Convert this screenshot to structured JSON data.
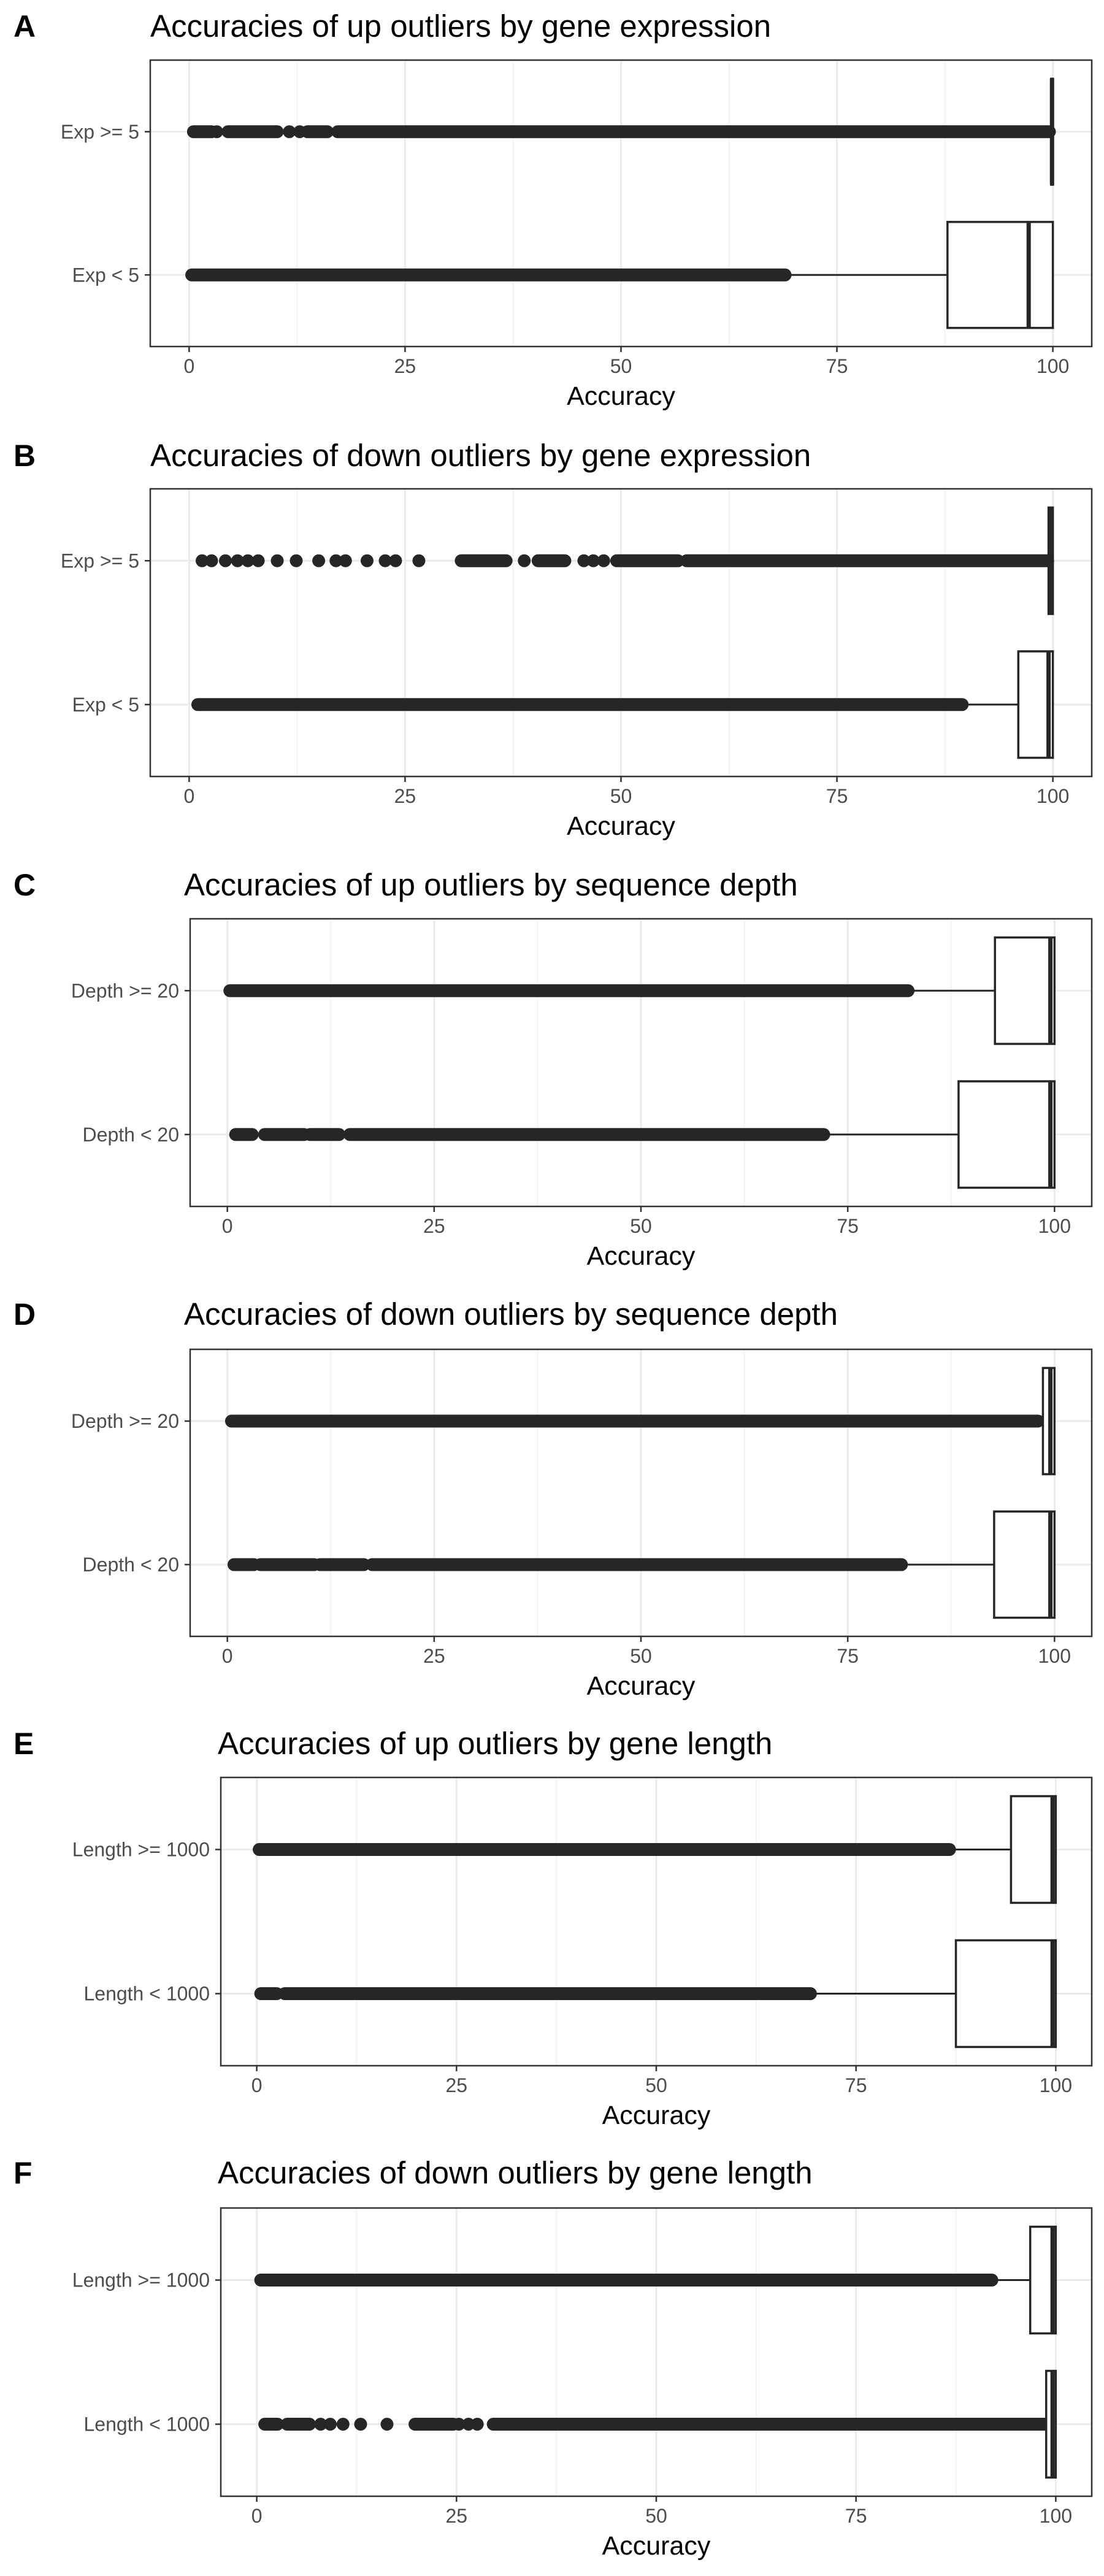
{
  "colors": {
    "ink": "#262626",
    "grid_major": "#ebebeb",
    "grid_minor": "#f2f2f2",
    "frame": "#333333",
    "tick_text": "#4d4d4d"
  },
  "chart_data": [
    {
      "type": "boxplot",
      "panel": "A",
      "title": "Accuracies of up outliers by gene expression",
      "xlabel": "Accuracy",
      "ylabel": "",
      "xlim": [
        -4.5,
        104.5
      ],
      "xticks": [
        0,
        25,
        50,
        75,
        100
      ],
      "grid": true,
      "categories": [
        "Exp >= 5",
        "Exp < 5"
      ],
      "boxes": [
        {
          "category": "Exp >= 5",
          "min": 99.8,
          "q1": 99.8,
          "median": 99.9,
          "q3": 100,
          "max": 100,
          "outlier_range": [
            0.5,
            99.6
          ],
          "dense_segments": [
            [
              0.5,
              2.6
            ],
            [
              4.5,
              10.2
            ],
            [
              13.7,
              16.0
            ],
            [
              17.2,
              99.6
            ]
          ],
          "sparse_points": [
            3.2,
            11.6,
            12.8
          ]
        },
        {
          "category": "Exp < 5",
          "min": 69.0,
          "q1": 87.8,
          "median": 97.2,
          "q3": 100,
          "max": 100,
          "outlier_range": [
            0.3,
            69.0
          ],
          "dense_segments": [
            [
              0.3,
              69.0
            ]
          ],
          "sparse_points": []
        }
      ]
    },
    {
      "type": "boxplot",
      "panel": "B",
      "title": "Accuracies of down outliers by gene expression",
      "xlabel": "Accuracy",
      "ylabel": "",
      "xlim": [
        -4.5,
        104.5
      ],
      "xticks": [
        0,
        25,
        50,
        75,
        100
      ],
      "grid": true,
      "categories": [
        "Exp >= 5",
        "Exp < 5"
      ],
      "boxes": [
        {
          "category": "Exp >= 5",
          "min": 99.5,
          "q1": 99.5,
          "median": 99.8,
          "q3": 100,
          "max": 100,
          "outlier_range": [
            1.5,
            99.4
          ],
          "dense_segments": [
            [
              31.5,
              36.7
            ],
            [
              40.4,
              43.5
            ],
            [
              49.5,
              56.6
            ],
            [
              57.6,
              99.4
            ]
          ],
          "sparse_points": [
            1.5,
            2.6,
            4.2,
            5.6,
            6.8,
            8.0,
            10.2,
            12.4,
            15.0,
            17.0,
            18.1,
            20.6,
            22.7,
            23.9,
            26.6,
            38.8,
            45.7,
            46.8,
            48.0
          ]
        },
        {
          "category": "Exp < 5",
          "min": 89.5,
          "q1": 96.0,
          "median": 99.5,
          "q3": 100,
          "max": 100,
          "outlier_range": [
            1.0,
            89.5
          ],
          "dense_segments": [
            [
              1.0,
              89.5
            ]
          ],
          "sparse_points": []
        }
      ]
    },
    {
      "type": "boxplot",
      "panel": "C",
      "title": "Accuracies of up outliers by sequence depth",
      "xlabel": "Accuracy",
      "ylabel": "",
      "xlim": [
        -4.5,
        104.5
      ],
      "xticks": [
        0,
        25,
        50,
        75,
        100
      ],
      "grid": true,
      "categories": [
        "Depth >= 20",
        "Depth < 20"
      ],
      "boxes": [
        {
          "category": "Depth >= 20",
          "min": 82.3,
          "q1": 92.8,
          "median": 99.5,
          "q3": 100,
          "max": 100,
          "outlier_range": [
            0.3,
            82.3
          ],
          "dense_segments": [
            [
              0.3,
              82.3
            ]
          ],
          "sparse_points": []
        },
        {
          "category": "Depth < 20",
          "min": 72.1,
          "q1": 88.4,
          "median": 99.5,
          "q3": 100,
          "max": 100,
          "outlier_range": [
            1.0,
            72.1
          ],
          "dense_segments": [
            [
              1.0,
              3.0
            ],
            [
              4.5,
              9.3
            ],
            [
              10.0,
              13.5
            ],
            [
              14.8,
              72.1
            ]
          ],
          "sparse_points": []
        }
      ]
    },
    {
      "type": "boxplot",
      "panel": "D",
      "title": "Accuracies of down outliers by sequence depth",
      "xlabel": "Accuracy",
      "ylabel": "",
      "xlim": [
        -4.5,
        104.5
      ],
      "xticks": [
        0,
        25,
        50,
        75,
        100
      ],
      "grid": true,
      "categories": [
        "Depth >= 20",
        "Depth < 20"
      ],
      "boxes": [
        {
          "category": "Depth >= 20",
          "min": 98.6,
          "q1": 98.6,
          "median": 99.5,
          "q3": 100,
          "max": 100,
          "outlier_range": [
            0.5,
            98.0
          ],
          "dense_segments": [
            [
              0.5,
              98.0
            ]
          ],
          "sparse_points": []
        },
        {
          "category": "Depth < 20",
          "min": 81.5,
          "q1": 92.7,
          "median": 99.5,
          "q3": 100,
          "max": 100,
          "outlier_range": [
            0.8,
            81.5
          ],
          "dense_segments": [
            [
              0.8,
              3.2
            ],
            [
              4.0,
              10.5
            ],
            [
              11.2,
              16.5
            ],
            [
              17.5,
              81.5
            ]
          ],
          "sparse_points": []
        }
      ]
    },
    {
      "type": "boxplot",
      "panel": "E",
      "title": "Accuracies of up outliers by gene length",
      "xlabel": "Accuracy",
      "ylabel": "",
      "xlim": [
        -4.5,
        104.5
      ],
      "xticks": [
        0,
        25,
        50,
        75,
        100
      ],
      "grid": true,
      "categories": [
        "Length >= 1000",
        "Length < 1000"
      ],
      "boxes": [
        {
          "category": "Length >= 1000",
          "min": 86.7,
          "q1": 94.4,
          "median": 99.6,
          "q3": 100,
          "max": 100,
          "outlier_range": [
            0.3,
            86.7
          ],
          "dense_segments": [
            [
              0.3,
              86.7
            ]
          ],
          "sparse_points": []
        },
        {
          "category": "Length < 1000",
          "min": 69.3,
          "q1": 87.5,
          "median": 99.6,
          "q3": 100,
          "max": 100,
          "outlier_range": [
            0.5,
            69.3
          ],
          "dense_segments": [
            [
              0.5,
              2.5
            ],
            [
              3.5,
              69.3
            ]
          ],
          "sparse_points": []
        }
      ]
    },
    {
      "type": "boxplot",
      "panel": "F",
      "title": "Accuracies of down outliers by gene length",
      "xlabel": "Accuracy",
      "ylabel": "",
      "xlim": [
        -4.5,
        104.5
      ],
      "xticks": [
        0,
        25,
        50,
        75,
        100
      ],
      "grid": true,
      "categories": [
        "Length >= 1000",
        "Length < 1000"
      ],
      "boxes": [
        {
          "category": "Length >= 1000",
          "min": 92.0,
          "q1": 96.8,
          "median": 99.6,
          "q3": 100,
          "max": 100,
          "outlier_range": [
            0.5,
            92.0
          ],
          "dense_segments": [
            [
              0.5,
              92.0
            ]
          ],
          "sparse_points": []
        },
        {
          "category": "Length < 1000",
          "min": 98.8,
          "q1": 98.8,
          "median": 99.6,
          "q3": 100,
          "max": 100,
          "outlier_range": [
            1.0,
            98.6
          ],
          "dense_segments": [
            [
              1.0,
              2.6
            ],
            [
              3.8,
              6.6
            ],
            [
              19.8,
              24.6
            ],
            [
              29.6,
              98.6
            ]
          ],
          "sparse_points": [
            5.5,
            8.0,
            9.2,
            10.8,
            13.0,
            16.3,
            25.3,
            26.5,
            27.6
          ]
        }
      ]
    }
  ]
}
